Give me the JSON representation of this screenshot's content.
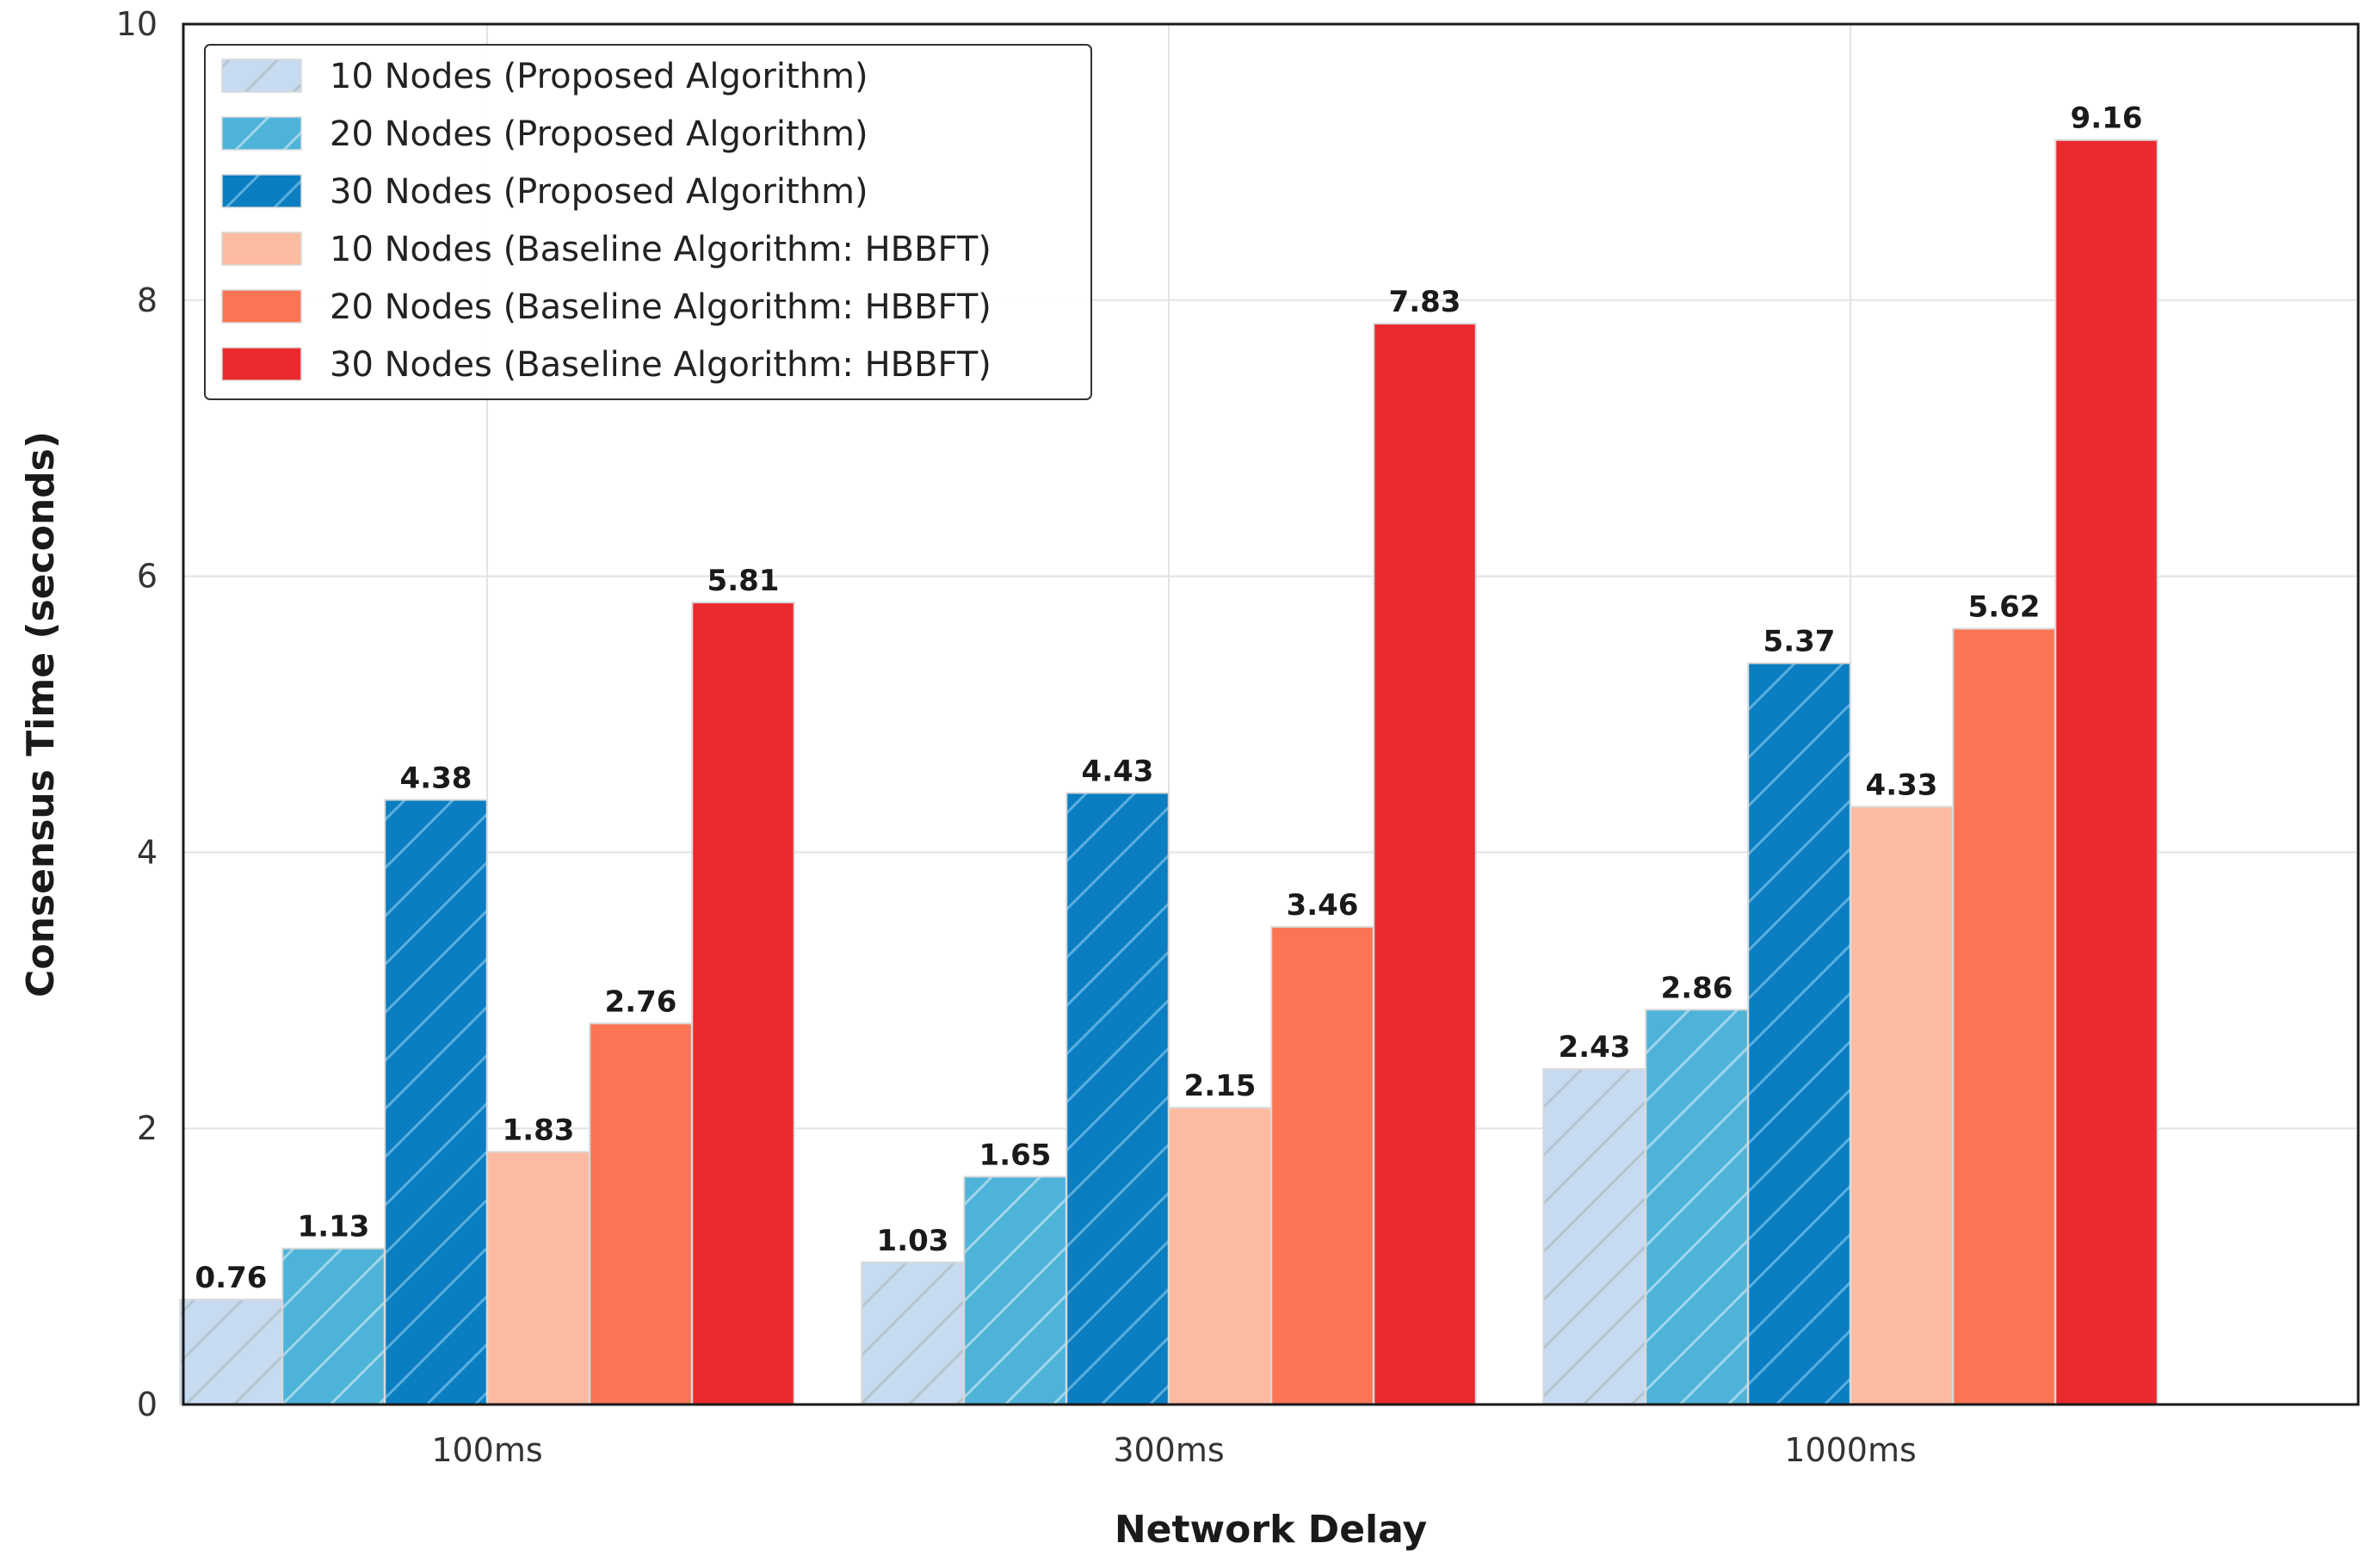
{
  "chart_data": {
    "type": "bar",
    "title": "",
    "xlabel": "Network Delay",
    "ylabel": "Consensus Time (seconds)",
    "categories": [
      "100ms",
      "300ms",
      "1000ms"
    ],
    "ylim": [
      0,
      10
    ],
    "yticks": [
      0,
      2,
      4,
      6,
      8,
      10
    ],
    "ytick_labels": [
      "0",
      "2",
      "4",
      "6",
      "8",
      "10"
    ],
    "grid": true,
    "legend_position": "top-left",
    "series": [
      {
        "name": "10 Nodes (Proposed Algorithm)",
        "values": [
          0.76,
          1.03,
          2.43
        ],
        "value_labels": [
          "0.76",
          "1.03",
          "2.43"
        ],
        "color": "#c6dbef",
        "hatch": true
      },
      {
        "name": "20 Nodes (Proposed Algorithm)",
        "values": [
          1.13,
          1.65,
          2.86
        ],
        "value_labels": [
          "1.13",
          "1.65",
          "2.86"
        ],
        "color": "#4eb3d9",
        "hatch": true
      },
      {
        "name": "30 Nodes (Proposed Algorithm)",
        "values": [
          4.38,
          4.43,
          5.37
        ],
        "value_labels": [
          "4.38",
          "4.43",
          "5.37"
        ],
        "color": "#0a7ec0",
        "hatch": true
      },
      {
        "name": "10 Nodes (Baseline Algorithm: HBBFT)",
        "values": [
          1.83,
          2.15,
          4.33
        ],
        "value_labels": [
          "1.83",
          "2.15",
          "4.33"
        ],
        "color": "#fcbba1",
        "hatch": false
      },
      {
        "name": "20 Nodes (Baseline Algorithm: HBBFT)",
        "values": [
          2.76,
          3.46,
          5.62
        ],
        "value_labels": [
          "2.76",
          "3.46",
          "5.62"
        ],
        "color": "#fb7454",
        "hatch": false
      },
      {
        "name": "30 Nodes (Baseline Algorithm: HBBFT)",
        "values": [
          5.81,
          7.83,
          9.16
        ],
        "value_labels": [
          "5.81",
          "7.83",
          "9.16"
        ],
        "color": "#eb2a2f",
        "hatch": false
      }
    ]
  }
}
